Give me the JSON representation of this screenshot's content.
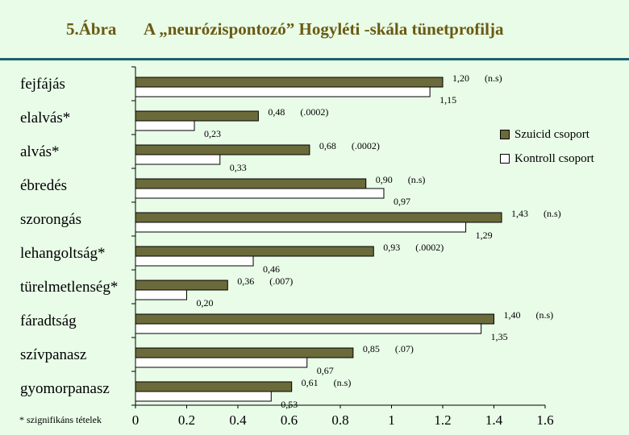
{
  "header": {
    "figure_label": "5.Ábra",
    "title": "A „neurózispontozó” Hogyléti -skála tünetprofilja"
  },
  "footnote": "* szignifikáns tételek",
  "legend": [
    {
      "label": "Szuicid csoport",
      "color": "#6b6a3a"
    },
    {
      "label": "Kontroll csoport",
      "color": "#ffffff"
    }
  ],
  "chart_data": {
    "type": "bar",
    "orientation": "horizontal",
    "xlim": [
      0,
      1.6
    ],
    "x_ticks": [
      "0",
      "0.2",
      "0.4",
      "0.6",
      "0.8",
      "1",
      "1.2",
      "1.4",
      "1.6"
    ],
    "categories": [
      "fejfájás",
      "elalvás*",
      "alvás*",
      "ébredés",
      "szorongás",
      "lehangoltság*",
      "türelmetlenség*",
      "fáradtság",
      "szívpanasz",
      "gyomorpanasz"
    ],
    "series": [
      {
        "name": "Szuicid csoport",
        "color": "#6b6a3a",
        "values": [
          1.2,
          0.48,
          0.68,
          0.9,
          1.43,
          0.93,
          0.36,
          1.4,
          0.85,
          0.61
        ],
        "labels": [
          "1,20",
          "0,48",
          "0,68",
          "0,90",
          "1,43",
          "0,93",
          "0,36",
          "1,40",
          "0,85",
          "0,61"
        ]
      },
      {
        "name": "Kontroll csoport",
        "color": "#ffffff",
        "values": [
          1.15,
          0.23,
          0.33,
          0.97,
          1.29,
          0.46,
          0.2,
          1.35,
          0.67,
          0.53
        ],
        "labels": [
          "1,15",
          "0,23",
          "0,33",
          "0,97",
          "1,29",
          "0,46",
          "0,20",
          "1,35",
          "0,67",
          "0,53"
        ]
      }
    ],
    "significance": [
      "(n.s)",
      "(.0002)",
      "(.0002)",
      "(n.s)",
      "(n.s)",
      "(.0002)",
      "(.007)",
      "(n.s)",
      "(.07)",
      "(n.s)"
    ],
    "legend_position": "right"
  }
}
